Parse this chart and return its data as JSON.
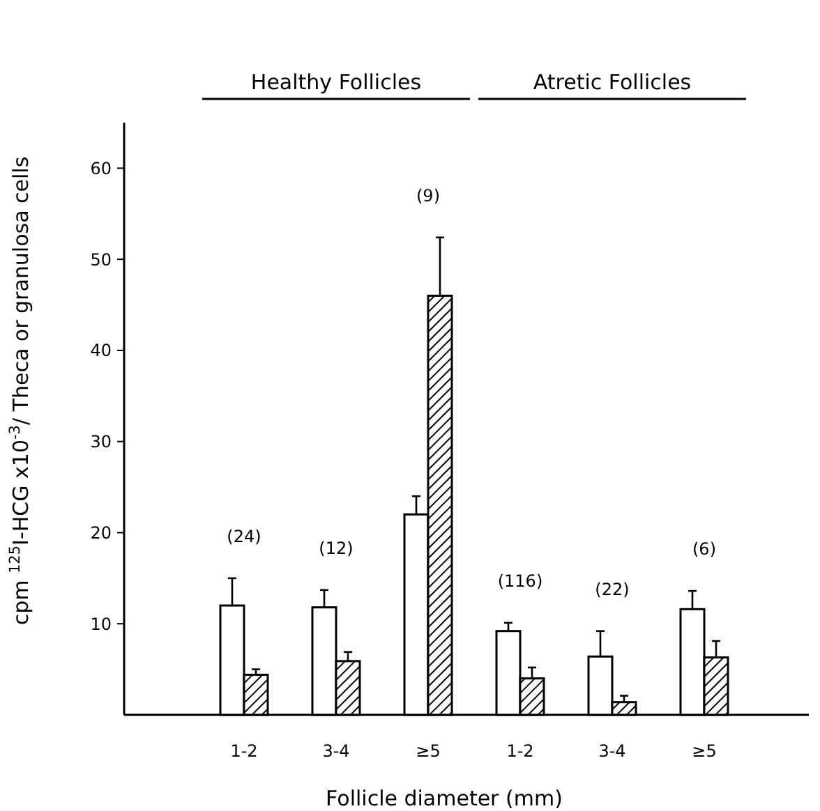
{
  "chart_data": {
    "type": "bar",
    "xlabel": "Follicle diameter (mm)",
    "ylabel": "cpm $^{125}$I-HCG x10$^{-3}$/ Theca or granulosa cells",
    "categories": [
      "1-2",
      "3-4",
      "≥5",
      "1-2",
      "3-4",
      "≥5"
    ],
    "series": [
      {
        "color": "#ffffff",
        "values": [
          12,
          11.8,
          22,
          9.2,
          6.4,
          11.6
        ],
        "errors": [
          [
            12,
            15
          ],
          [
            11.8,
            13.7
          ],
          [
            22,
            24
          ],
          [
            9.2,
            10.1
          ],
          [
            6.4,
            9.2
          ],
          [
            11.6,
            13.6
          ]
        ]
      },
      {
        "color": "#000000",
        "values": [
          4.4,
          5.9,
          46,
          4,
          1.4,
          6.3
        ],
        "errors": [
          [
            4.4,
            5
          ],
          [
            5.9,
            6.9
          ],
          [
            46,
            52.4
          ],
          [
            4,
            5.2
          ],
          [
            1.4,
            2.1
          ],
          [
            6.3,
            8.1
          ]
        ]
      }
    ],
    "ylim": [
      0,
      65
    ],
    "yticks": [
      10,
      20,
      30,
      40,
      50,
      60
    ],
    "grid": false,
    "annotations": [
      "Healthy Follicles",
      "Atretic Follicles",
      "(24)",
      "(12)",
      "(9)",
      "(116)",
      "(22)",
      "(6)"
    ]
  }
}
